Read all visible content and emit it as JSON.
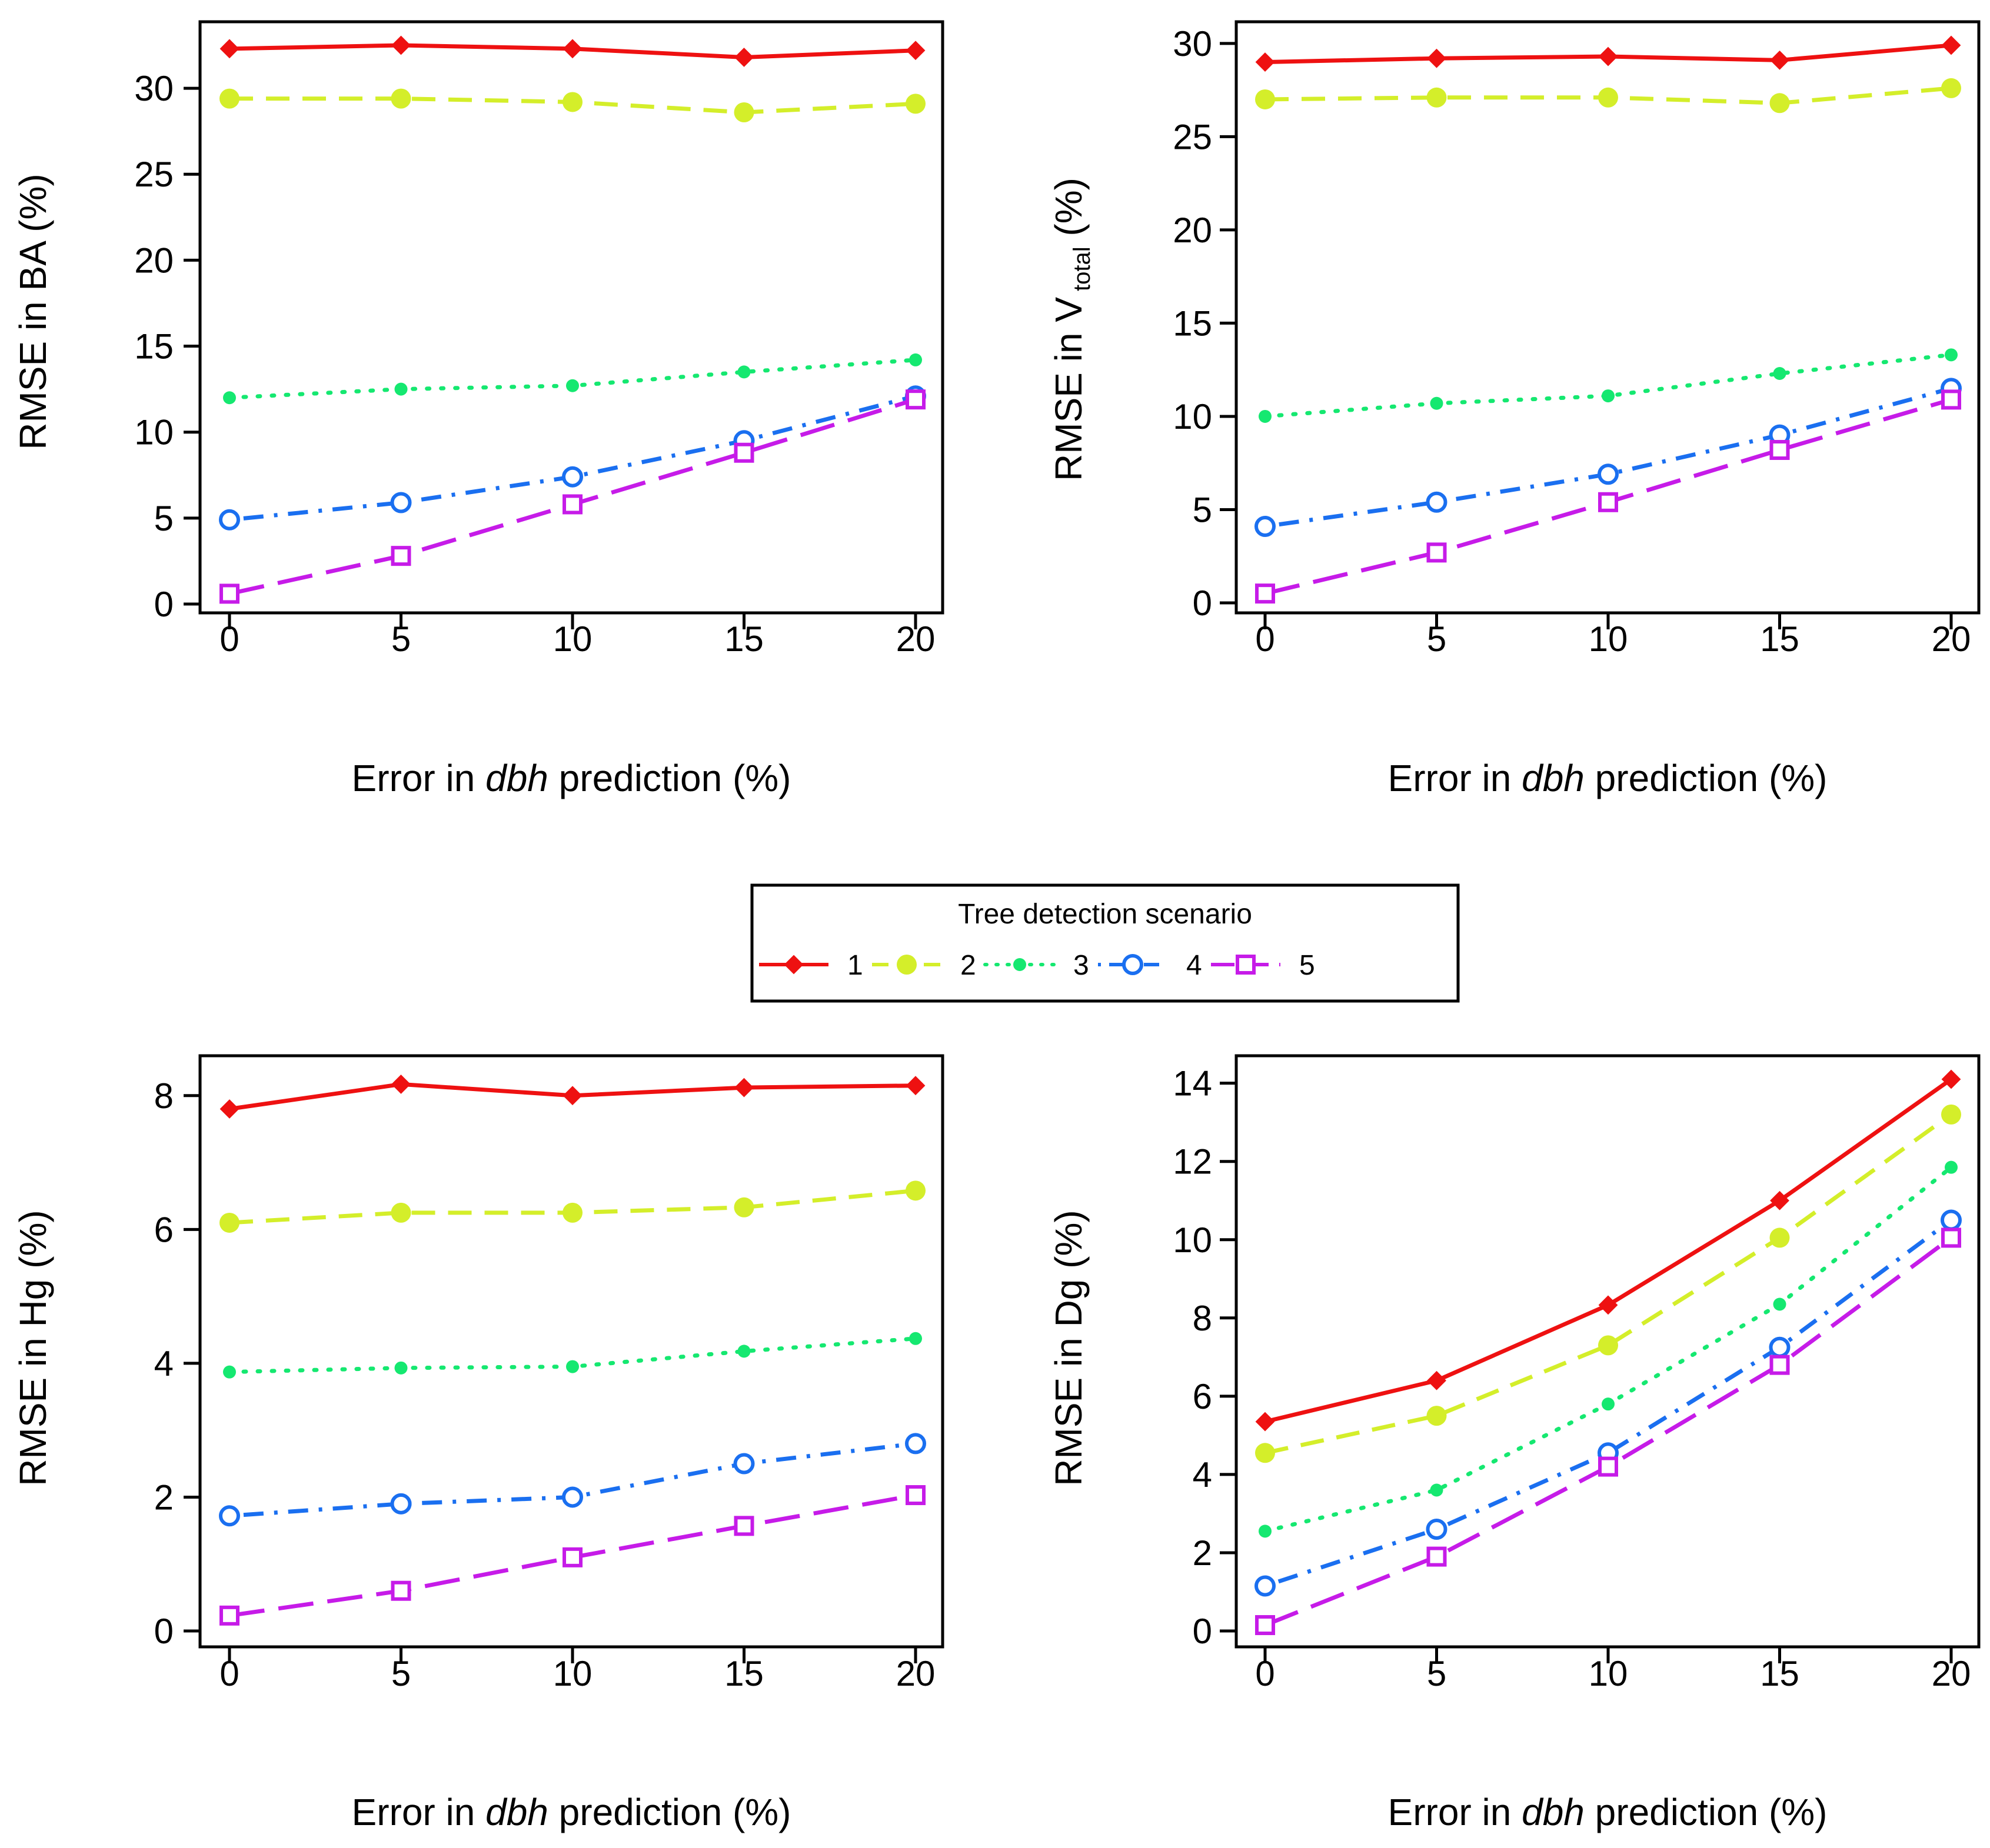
{
  "chart_data": [
    {
      "type": "line",
      "id": "ba",
      "title": "",
      "xlabel": {
        "pre": "Error in ",
        "italic": "dbh",
        "post": " prediction (%)"
      },
      "ylabel": "RMSE in BA (%)",
      "x": [
        0,
        5,
        10,
        15,
        20
      ],
      "xlim": [
        0,
        20
      ],
      "ylim": [
        0,
        32.5
      ],
      "yticks": [
        0,
        5,
        10,
        15,
        20,
        25,
        30
      ],
      "xticks": [
        0,
        5,
        10,
        15,
        20
      ],
      "series": [
        {
          "name": "1",
          "values": [
            32.3,
            32.5,
            32.3,
            31.8,
            32.2
          ]
        },
        {
          "name": "2",
          "values": [
            29.4,
            29.4,
            29.2,
            28.6,
            29.1
          ]
        },
        {
          "name": "3",
          "values": [
            12.0,
            12.5,
            12.7,
            13.5,
            14.2
          ]
        },
        {
          "name": "4",
          "values": [
            4.9,
            5.9,
            7.4,
            9.5,
            12.1
          ]
        },
        {
          "name": "5",
          "values": [
            0.6,
            2.8,
            5.8,
            8.8,
            11.9
          ]
        }
      ]
    },
    {
      "type": "line",
      "id": "vtotal",
      "title": "",
      "xlabel": {
        "pre": "Error in ",
        "italic": "dbh",
        "post": " prediction (%)"
      },
      "ylabel": {
        "pre": "RMSE in V",
        "sub": "total",
        "post": " (%)"
      },
      "x": [
        0,
        5,
        10,
        15,
        20
      ],
      "xlim": [
        0,
        20
      ],
      "ylim": [
        0,
        29.9
      ],
      "yticks": [
        0,
        5,
        10,
        15,
        20,
        25,
        30
      ],
      "xticks": [
        0,
        5,
        10,
        15,
        20
      ],
      "series": [
        {
          "name": "1",
          "values": [
            29.0,
            29.2,
            29.3,
            29.1,
            29.9
          ]
        },
        {
          "name": "2",
          "values": [
            27.0,
            27.1,
            27.1,
            26.8,
            27.6
          ]
        },
        {
          "name": "3",
          "values": [
            10.0,
            10.7,
            11.1,
            12.3,
            13.3
          ]
        },
        {
          "name": "4",
          "values": [
            4.1,
            5.4,
            6.9,
            9.0,
            11.5
          ]
        },
        {
          "name": "5",
          "values": [
            0.5,
            2.7,
            5.4,
            8.2,
            10.9
          ]
        }
      ]
    },
    {
      "type": "line",
      "id": "hg",
      "title": "",
      "xlabel": {
        "pre": "Error in ",
        "italic": "dbh",
        "post": " prediction (%)"
      },
      "ylabel": "RMSE in Hg (%)",
      "x": [
        0,
        5,
        10,
        15,
        20
      ],
      "xlim": [
        0,
        20
      ],
      "ylim": [
        0,
        8.2
      ],
      "yticks": [
        0,
        2,
        4,
        6,
        8
      ],
      "xticks": [
        0,
        5,
        10,
        15,
        20
      ],
      "series": [
        {
          "name": "1",
          "values": [
            7.8,
            8.17,
            8.0,
            8.12,
            8.15
          ]
        },
        {
          "name": "2",
          "values": [
            6.1,
            6.25,
            6.25,
            6.33,
            6.58
          ]
        },
        {
          "name": "3",
          "values": [
            3.87,
            3.93,
            3.95,
            4.18,
            4.37
          ]
        },
        {
          "name": "4",
          "values": [
            1.72,
            1.9,
            2.0,
            2.5,
            2.8
          ]
        },
        {
          "name": "5",
          "values": [
            0.23,
            0.6,
            1.1,
            1.57,
            2.03
          ]
        }
      ]
    },
    {
      "type": "line",
      "id": "dg",
      "title": "",
      "xlabel": {
        "pre": "Error in ",
        "italic": "dbh",
        "post": " prediction (%)"
      },
      "ylabel": "RMSE in Dg (%)",
      "x": [
        0,
        5,
        10,
        15,
        20
      ],
      "xlim": [
        0,
        20
      ],
      "ylim": [
        0,
        14.1
      ],
      "yticks": [
        0,
        2,
        4,
        6,
        8,
        10,
        12,
        14
      ],
      "xticks": [
        0,
        5,
        10,
        15,
        20
      ],
      "series": [
        {
          "name": "1",
          "values": [
            5.35,
            6.4,
            8.33,
            11.0,
            14.1
          ]
        },
        {
          "name": "2",
          "values": [
            4.55,
            5.5,
            7.3,
            10.05,
            13.2
          ]
        },
        {
          "name": "3",
          "values": [
            2.55,
            3.6,
            5.8,
            8.35,
            11.85
          ]
        },
        {
          "name": "4",
          "values": [
            1.15,
            2.6,
            4.55,
            7.25,
            10.5
          ]
        },
        {
          "name": "5",
          "values": [
            0.15,
            1.9,
            4.2,
            6.8,
            10.05
          ]
        }
      ]
    }
  ],
  "legend": {
    "title": "Tree detection scenario",
    "entries": [
      "1",
      "2",
      "3",
      "4",
      "5"
    ],
    "placement": "center"
  },
  "series_styles": [
    {
      "name": "1",
      "color": "#ee1111",
      "marker": "diamond-filled",
      "dash": "solid"
    },
    {
      "name": "2",
      "color": "#d4ee2a",
      "marker": "circle-filled-large",
      "dash": "dashed"
    },
    {
      "name": "3",
      "color": "#15e870",
      "marker": "circle-filled-small",
      "dash": "dotted"
    },
    {
      "name": "4",
      "color": "#1a6ff0",
      "marker": "circle-open",
      "dash": "dotdash"
    },
    {
      "name": "5",
      "color": "#c61be8",
      "marker": "square-open",
      "dash": "longdash"
    }
  ]
}
